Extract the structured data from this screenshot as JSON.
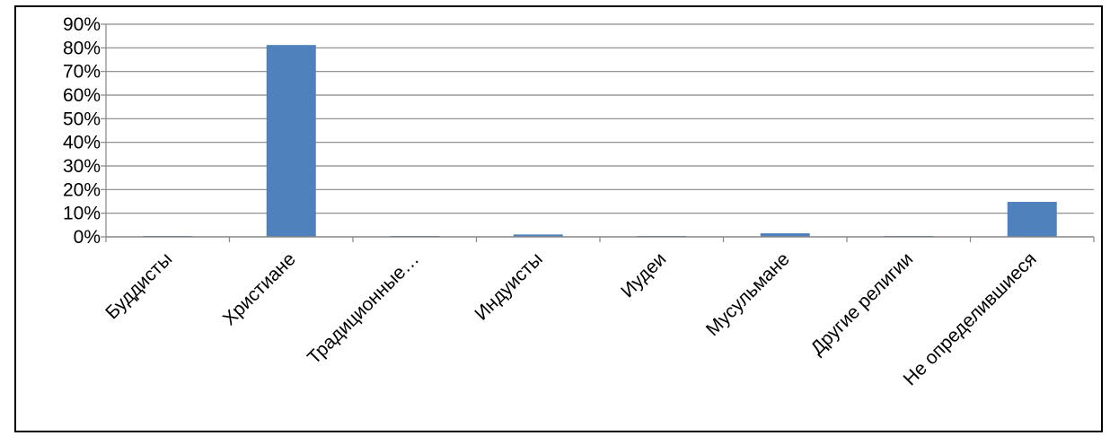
{
  "chart_data": {
    "type": "bar",
    "categories": [
      "Буддисты",
      "Христиане",
      "Традиционные…",
      "Индуисты",
      "Иудеи",
      "Мусульмане",
      "Другие религии",
      "Не определившиеся"
    ],
    "series": [
      {
        "values": [
          0.1,
          81.2,
          0.1,
          1.0,
          0.1,
          1.5,
          0.1,
          14.8
        ],
        "color": "#4F81BD"
      }
    ],
    "yticks": [
      "0%",
      "10%",
      "20%",
      "30%",
      "40%",
      "50%",
      "60%",
      "70%",
      "80%",
      "90%"
    ],
    "ylim": [
      0,
      90
    ],
    "title": "",
    "xlabel": "",
    "ylabel": "",
    "grid": true,
    "legend": false,
    "colors": {
      "bar": "#4F81BD",
      "grid": "#868686",
      "frame": "#000000",
      "text": "#000000"
    }
  }
}
